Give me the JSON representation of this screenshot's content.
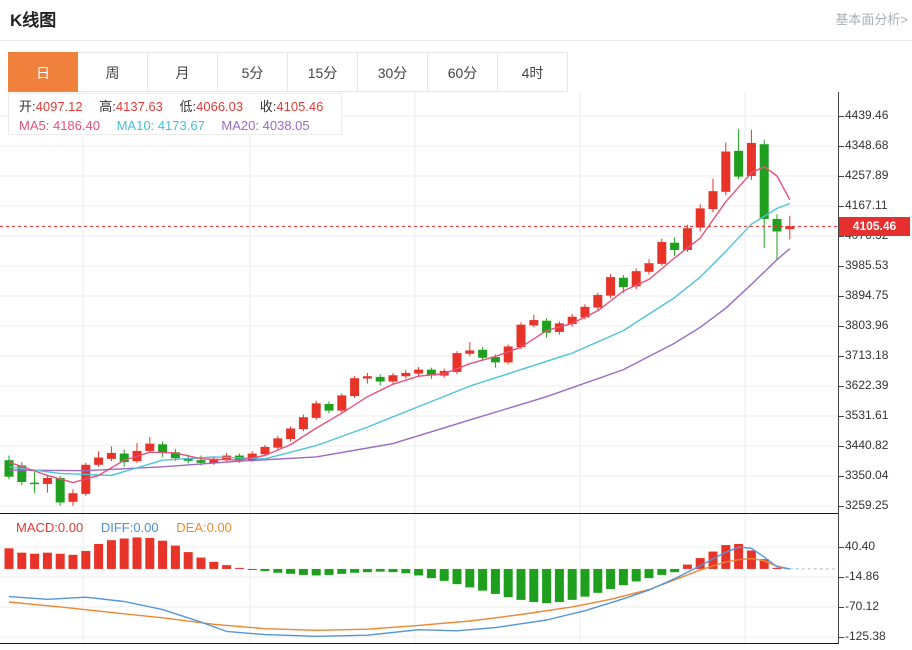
{
  "header": {
    "title": "K线图",
    "analysis_link": "基本面分析>"
  },
  "tabs": {
    "items": [
      {
        "id": "day",
        "label": "日",
        "active": true
      },
      {
        "id": "week",
        "label": "周",
        "active": false
      },
      {
        "id": "month",
        "label": "月",
        "active": false
      },
      {
        "id": "m5",
        "label": "5分",
        "active": false
      },
      {
        "id": "m15",
        "label": "15分",
        "active": false
      },
      {
        "id": "m30",
        "label": "30分",
        "active": false
      },
      {
        "id": "m60",
        "label": "60分",
        "active": false
      },
      {
        "id": "h4",
        "label": "4时",
        "active": false
      }
    ]
  },
  "ohlc": {
    "items": [
      {
        "label": "开:",
        "value": "4097.12"
      },
      {
        "label": "高:",
        "value": "4137.63"
      },
      {
        "label": "低:",
        "value": "4066.03"
      },
      {
        "label": "收:",
        "value": "4105.46"
      }
    ]
  },
  "ma_readout": {
    "ma5": {
      "label": "MA5:",
      "value": "4186.40"
    },
    "ma10": {
      "label": "MA10:",
      "value": "4173.67"
    },
    "ma20": {
      "label": "MA20:",
      "value": "4038.05"
    }
  },
  "macd_readout": {
    "macd": {
      "label": "MACD:",
      "value": "0.00"
    },
    "diff": {
      "label": "DIFF:",
      "value": "0.00"
    },
    "dea": {
      "label": "DEA:",
      "value": "0.00"
    }
  },
  "price_marker": {
    "value": "4105.46"
  },
  "colors": {
    "up": "#e73328",
    "down": "#1ea01e",
    "ma5": "#e8517c",
    "ma10": "#4fc3d8",
    "ma20": "#9b6bc3",
    "diff": "#5596d8",
    "dea": "#ed8733",
    "grid": "#ececec",
    "accent_tab": "#ef813d",
    "price_line": "#e62f2f",
    "dashed_ext": "#9bbfe0"
  },
  "chart_data": [
    {
      "type": "candlestick",
      "title": "K线图 (日)",
      "legend": [
        "MA5",
        "MA10",
        "MA20"
      ],
      "y_ticks": [
        4439.46,
        4348.68,
        4257.89,
        4167.11,
        4076.32,
        3985.53,
        3894.75,
        3803.96,
        3713.18,
        3622.39,
        3531.61,
        3440.82,
        3350.04,
        3259.25
      ],
      "ylim": [
        3215,
        4485
      ],
      "grid": true,
      "legend_position": "top-left",
      "current_price": 4105.46,
      "candles_ohlc": [
        [
          3398,
          3412,
          3340,
          3348
        ],
        [
          3382,
          3392,
          3322,
          3332
        ],
        [
          3330,
          3362,
          3298,
          3326
        ],
        [
          3326,
          3352,
          3300,
          3344
        ],
        [
          3344,
          3350,
          3260,
          3270
        ],
        [
          3272,
          3310,
          3260,
          3298
        ],
        [
          3296,
          3390,
          3290,
          3384
        ],
        [
          3384,
          3425,
          3378,
          3406
        ],
        [
          3402,
          3440,
          3395,
          3420
        ],
        [
          3418,
          3430,
          3378,
          3392
        ],
        [
          3395,
          3450,
          3390,
          3426
        ],
        [
          3426,
          3468,
          3420,
          3448
        ],
        [
          3446,
          3455,
          3408,
          3422
        ],
        [
          3422,
          3432,
          3396,
          3404
        ],
        [
          3404,
          3415,
          3388,
          3396
        ],
        [
          3398,
          3412,
          3382,
          3390
        ],
        [
          3390,
          3408,
          3384,
          3402
        ],
        [
          3400,
          3420,
          3392,
          3412
        ],
        [
          3412,
          3418,
          3390,
          3398
        ],
        [
          3398,
          3425,
          3392,
          3418
        ],
        [
          3416,
          3444,
          3410,
          3438
        ],
        [
          3436,
          3472,
          3430,
          3464
        ],
        [
          3462,
          3500,
          3455,
          3494
        ],
        [
          3492,
          3536,
          3486,
          3528
        ],
        [
          3526,
          3578,
          3520,
          3570
        ],
        [
          3568,
          3576,
          3540,
          3548
        ],
        [
          3548,
          3600,
          3542,
          3594
        ],
        [
          3592,
          3652,
          3586,
          3646
        ],
        [
          3645,
          3662,
          3630,
          3652
        ],
        [
          3650,
          3658,
          3624,
          3636
        ],
        [
          3636,
          3662,
          3630,
          3655
        ],
        [
          3652,
          3672,
          3645,
          3662
        ],
        [
          3660,
          3680,
          3652,
          3672
        ],
        [
          3672,
          3678,
          3644,
          3654
        ],
        [
          3654,
          3675,
          3648,
          3668
        ],
        [
          3665,
          3728,
          3658,
          3722
        ],
        [
          3720,
          3755,
          3712,
          3730
        ],
        [
          3732,
          3740,
          3698,
          3708
        ],
        [
          3710,
          3718,
          3678,
          3694
        ],
        [
          3694,
          3748,
          3688,
          3742
        ],
        [
          3740,
          3815,
          3734,
          3808
        ],
        [
          3806,
          3838,
          3800,
          3822
        ],
        [
          3820,
          3828,
          3768,
          3784
        ],
        [
          3786,
          3818,
          3778,
          3812
        ],
        [
          3810,
          3840,
          3802,
          3832
        ],
        [
          3830,
          3870,
          3824,
          3862
        ],
        [
          3860,
          3905,
          3852,
          3898
        ],
        [
          3896,
          3962,
          3888,
          3952
        ],
        [
          3950,
          3958,
          3904,
          3922
        ],
        [
          3924,
          3978,
          3916,
          3970
        ],
        [
          3968,
          4006,
          3960,
          3994
        ],
        [
          3992,
          4068,
          3986,
          4058
        ],
        [
          4056,
          4072,
          4016,
          4034
        ],
        [
          4034,
          4110,
          4028,
          4100
        ],
        [
          4102,
          4172,
          4090,
          4160
        ],
        [
          4158,
          4250,
          4148,
          4212
        ],
        [
          4210,
          4360,
          4200,
          4332
        ],
        [
          4334,
          4400,
          4248,
          4256
        ],
        [
          4258,
          4398,
          4246,
          4358
        ],
        [
          4354,
          4368,
          4040,
          4128
        ],
        [
          4128,
          4142,
          4004,
          4090
        ],
        [
          4097.12,
          4137.63,
          4066.03,
          4105.46
        ]
      ],
      "ma5_points": [
        [
          0,
          3392
        ],
        [
          3,
          3352
        ],
        [
          5,
          3330
        ],
        [
          7,
          3352
        ],
        [
          9,
          3398
        ],
        [
          11,
          3422
        ],
        [
          13,
          3420
        ],
        [
          15,
          3402
        ],
        [
          18,
          3398
        ],
        [
          20,
          3412
        ],
        [
          22,
          3445
        ],
        [
          24,
          3495
        ],
        [
          26,
          3540
        ],
        [
          28,
          3590
        ],
        [
          30,
          3628
        ],
        [
          32,
          3652
        ],
        [
          34,
          3660
        ],
        [
          36,
          3690
        ],
        [
          38,
          3712
        ],
        [
          40,
          3740
        ],
        [
          42,
          3790
        ],
        [
          44,
          3812
        ],
        [
          46,
          3850
        ],
        [
          48,
          3910
        ],
        [
          50,
          3945
        ],
        [
          52,
          4010
        ],
        [
          54,
          4070
        ],
        [
          56,
          4180
        ],
        [
          58,
          4268
        ],
        [
          59,
          4286
        ],
        [
          60,
          4258
        ],
        [
          61,
          4186
        ]
      ],
      "ma10_points": [
        [
          0,
          3378
        ],
        [
          4,
          3358
        ],
        [
          8,
          3352
        ],
        [
          12,
          3398
        ],
        [
          16,
          3408
        ],
        [
          20,
          3402
        ],
        [
          24,
          3442
        ],
        [
          28,
          3498
        ],
        [
          32,
          3560
        ],
        [
          36,
          3622
        ],
        [
          40,
          3672
        ],
        [
          44,
          3722
        ],
        [
          48,
          3790
        ],
        [
          52,
          3890
        ],
        [
          54,
          3952
        ],
        [
          56,
          4030
        ],
        [
          58,
          4112
        ],
        [
          60,
          4160
        ],
        [
          61,
          4174
        ]
      ],
      "ma20_points": [
        [
          0,
          3368
        ],
        [
          6,
          3366
        ],
        [
          12,
          3378
        ],
        [
          18,
          3395
        ],
        [
          24,
          3408
        ],
        [
          30,
          3448
        ],
        [
          36,
          3520
        ],
        [
          42,
          3590
        ],
        [
          48,
          3672
        ],
        [
          52,
          3752
        ],
        [
          54,
          3800
        ],
        [
          56,
          3858
        ],
        [
          58,
          3930
        ],
        [
          60,
          4005
        ],
        [
          61,
          4038
        ]
      ]
    },
    {
      "type": "bar",
      "title": "MACD",
      "y_ticks": [
        40.4,
        -14.86,
        -70.12,
        -125.38
      ],
      "ylim": [
        -152,
        68
      ],
      "grid": true,
      "histogram": [
        38,
        30,
        28,
        30,
        28,
        26,
        33,
        46,
        53,
        56,
        58,
        57,
        52,
        43,
        31,
        21,
        13,
        7,
        2,
        -2,
        -4,
        -7,
        -9,
        -11,
        -12,
        -11,
        -9,
        -7,
        -6,
        -5,
        -6,
        -8,
        -12,
        -17,
        -22,
        -28,
        -34,
        -40,
        -46,
        -52,
        -57,
        -61,
        -63,
        -61,
        -57,
        -51,
        -44,
        -37,
        -30,
        -23,
        -17,
        -11,
        -6,
        8,
        20,
        32,
        44,
        46,
        34,
        18,
        2,
        0
      ],
      "diff_points": [
        [
          0,
          -51
        ],
        [
          3,
          -56
        ],
        [
          6,
          -52
        ],
        [
          9,
          -60
        ],
        [
          12,
          -75
        ],
        [
          15,
          -98
        ],
        [
          17,
          -115
        ],
        [
          20,
          -121
        ],
        [
          24,
          -124
        ],
        [
          28,
          -122
        ],
        [
          32,
          -112
        ],
        [
          35,
          -114
        ],
        [
          38,
          -108
        ],
        [
          42,
          -94
        ],
        [
          45,
          -77
        ],
        [
          48,
          -55
        ],
        [
          50,
          -39
        ],
        [
          52,
          -18
        ],
        [
          54,
          6
        ],
        [
          56,
          31
        ],
        [
          57,
          40
        ],
        [
          58,
          38
        ],
        [
          59,
          22
        ],
        [
          60,
          4
        ],
        [
          61,
          0
        ]
      ],
      "dea_points": [
        [
          0,
          -61
        ],
        [
          4,
          -70
        ],
        [
          8,
          -80
        ],
        [
          12,
          -90
        ],
        [
          16,
          -102
        ],
        [
          20,
          -110
        ],
        [
          24,
          -113
        ],
        [
          28,
          -111
        ],
        [
          32,
          -104
        ],
        [
          36,
          -96
        ],
        [
          40,
          -84
        ],
        [
          44,
          -70
        ],
        [
          47,
          -56
        ],
        [
          50,
          -38
        ],
        [
          52,
          -20
        ],
        [
          54,
          -2
        ],
        [
          56,
          13
        ],
        [
          57,
          17
        ],
        [
          58,
          19
        ],
        [
          59,
          15
        ],
        [
          60,
          5
        ],
        [
          61,
          0
        ]
      ]
    }
  ]
}
